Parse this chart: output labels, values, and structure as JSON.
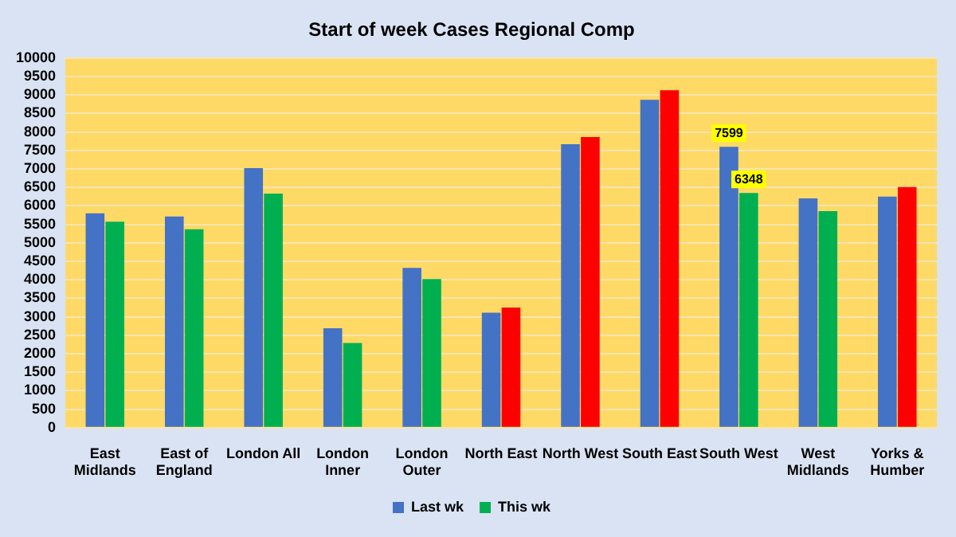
{
  "chart_data": {
    "type": "bar",
    "title": "Start of week Cases Regional Comp",
    "categories": [
      "East Midlands",
      "East of England",
      "London All",
      "London Inner",
      "London Outer",
      "North East",
      "North West",
      "South East",
      "South West",
      "West Midlands",
      "Yorks & Humber"
    ],
    "series": [
      {
        "name": "Last wk",
        "color": "#4472c4",
        "values": [
          5800,
          5710,
          7020,
          2690,
          4320,
          3110,
          7670,
          8870,
          7599,
          6200,
          6250
        ],
        "value_labels": [
          null,
          null,
          null,
          null,
          null,
          null,
          null,
          null,
          "7599",
          null,
          null
        ]
      },
      {
        "name": "This wk",
        "color": "#00b050",
        "colors": [
          "#00b050",
          "#00b050",
          "#00b050",
          "#00b050",
          "#00b050",
          "#ff0000",
          "#ff0000",
          "#ff0000",
          "#00b050",
          "#00b050",
          "#ff0000"
        ],
        "values": [
          5570,
          5370,
          6330,
          2290,
          4020,
          3250,
          7860,
          9130,
          6348,
          5860,
          6510
        ],
        "value_labels": [
          null,
          null,
          null,
          null,
          null,
          null,
          null,
          null,
          "6348",
          null,
          null
        ]
      }
    ],
    "ylim": [
      0,
      10000
    ],
    "yticks": [
      0,
      500,
      1000,
      1500,
      2000,
      2500,
      3000,
      3500,
      4000,
      4500,
      5000,
      5500,
      6000,
      6500,
      7000,
      7500,
      8000,
      8500,
      9000,
      9500,
      10000
    ],
    "grid": "y",
    "legend": "bottom"
  }
}
